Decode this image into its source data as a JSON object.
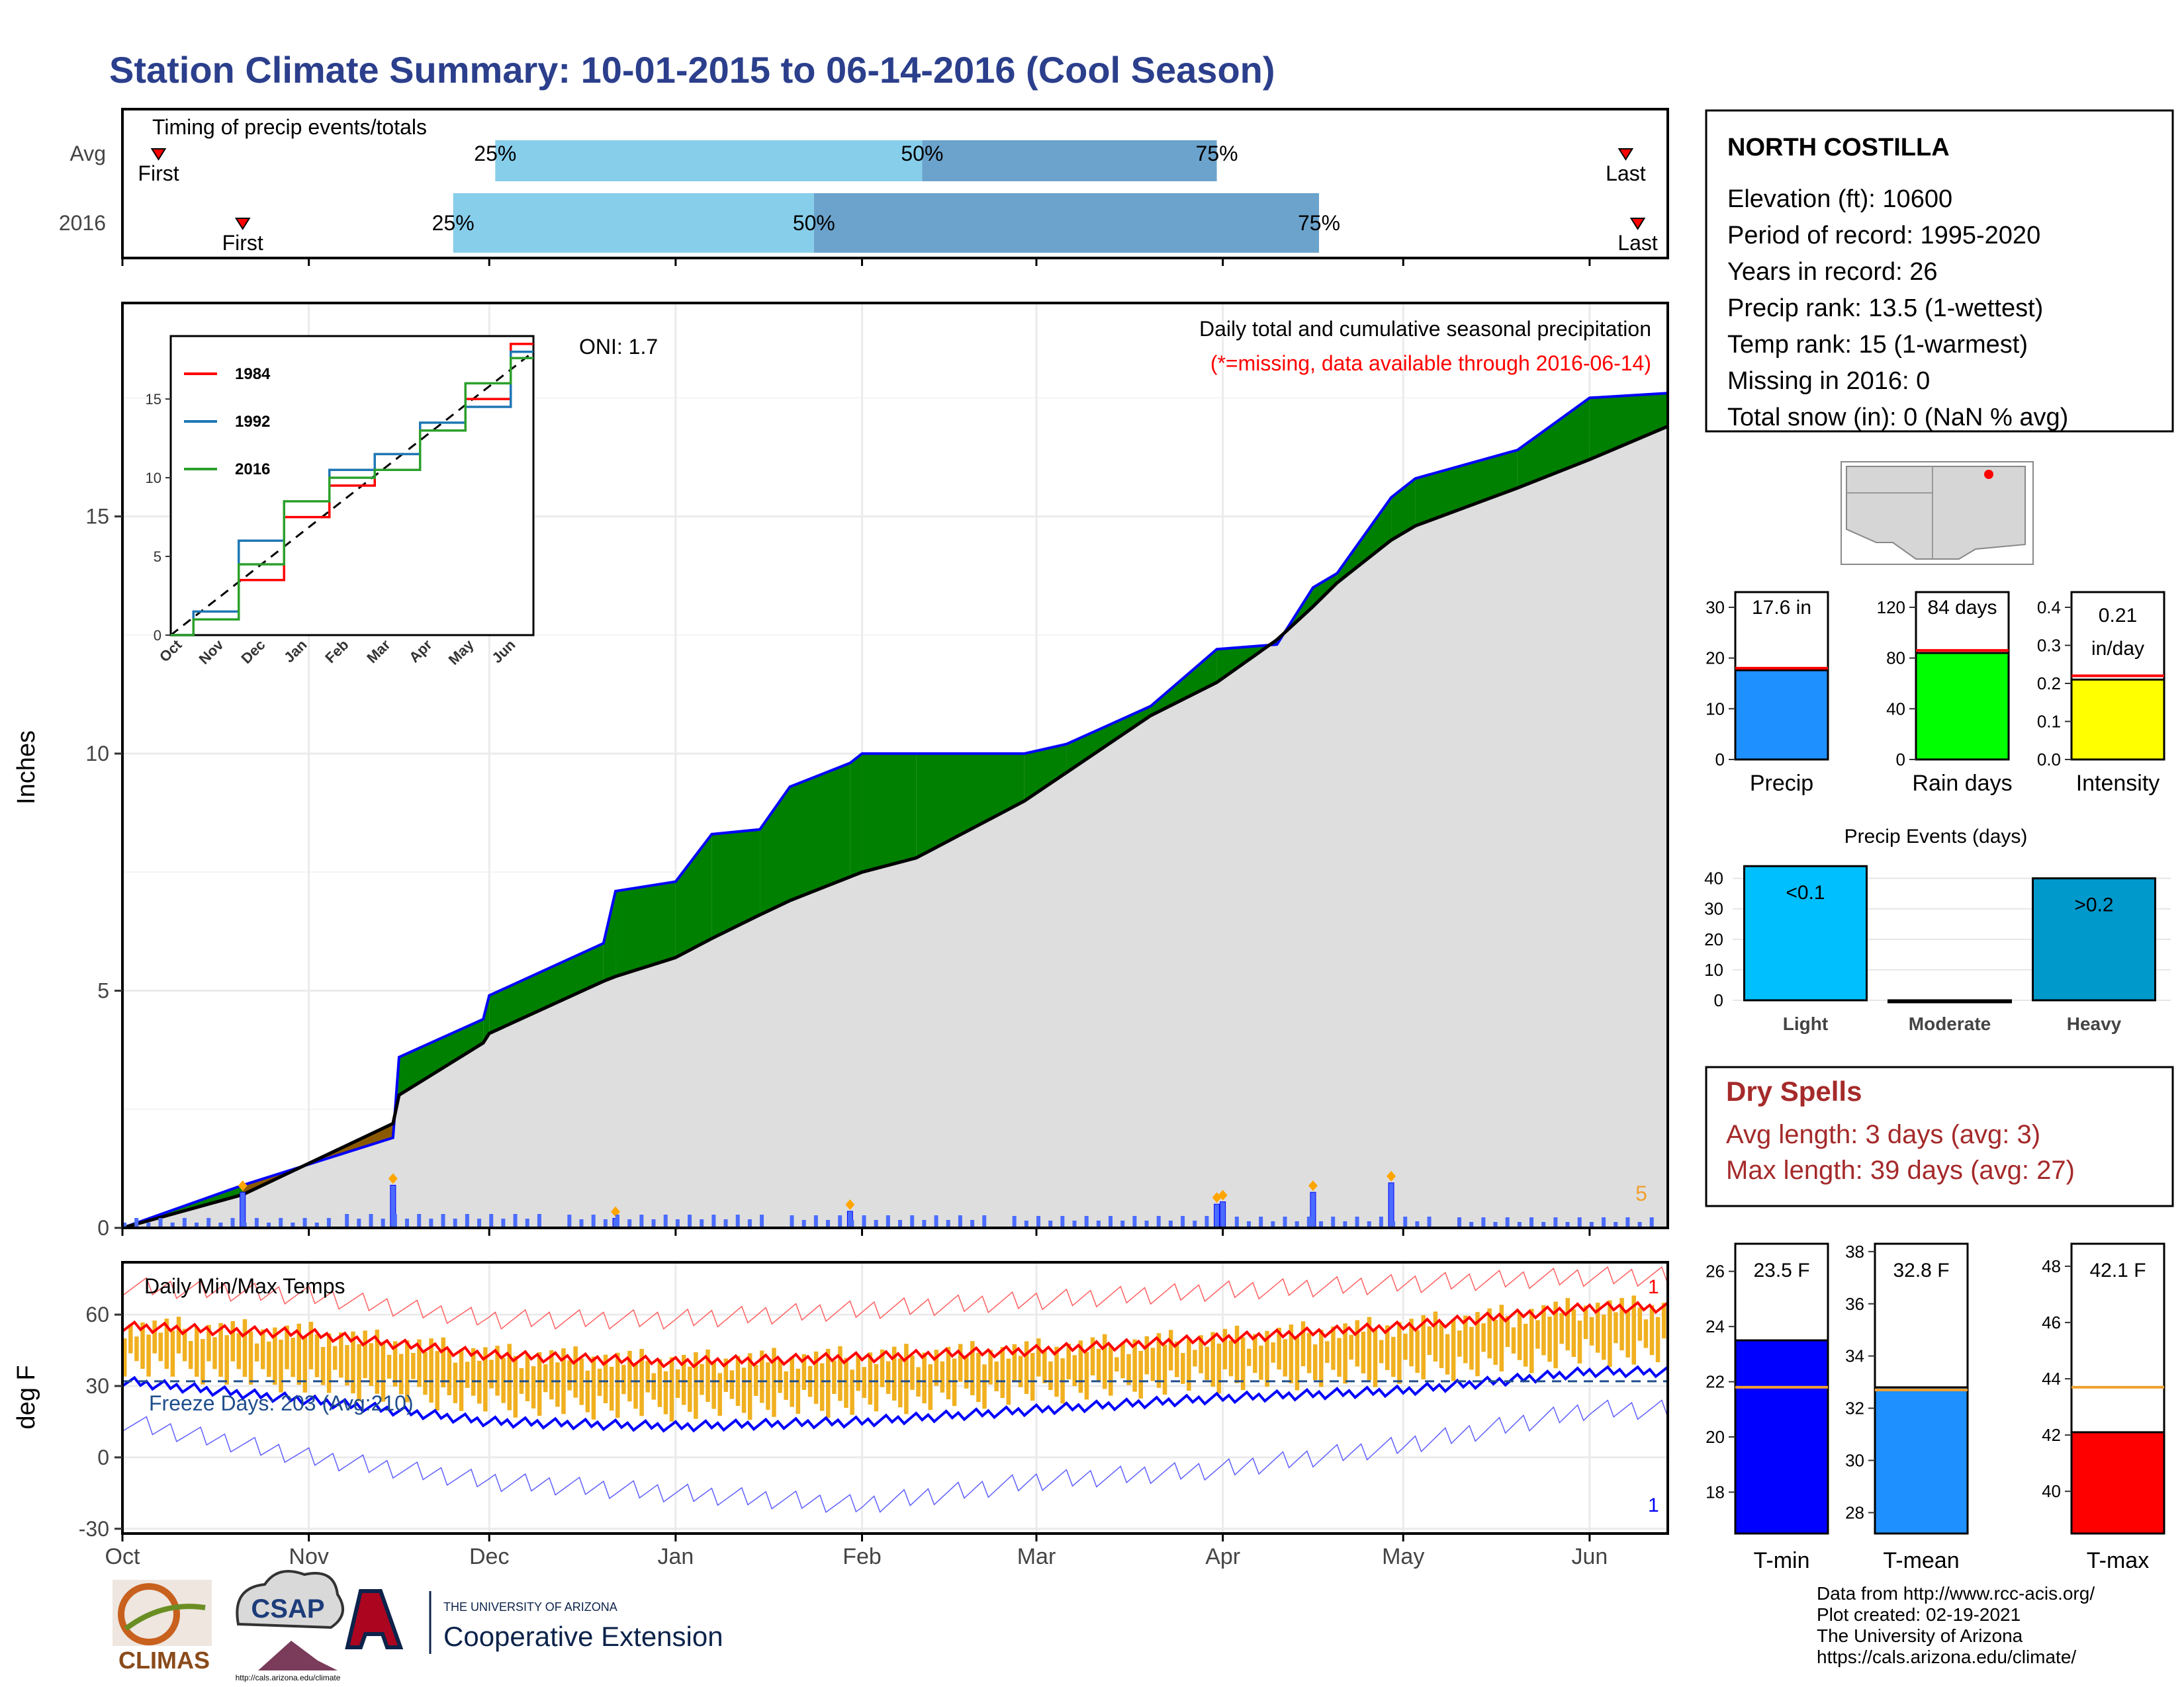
{
  "title": "Station Climate Summary: 10-01-2015 to 06-14-2016 (Cool Season)",
  "colors": {
    "title": "#2b3f8c",
    "light_blue": "#87ceeb",
    "mid_blue": "#6ba3cc",
    "green": "#008000",
    "brown": "#8b5a00",
    "grey_fill": "#dedede",
    "outline_blue": "#0000ff",
    "red": "#ff0000",
    "gold": "#f0b020",
    "dry_spell": "#a52a2a",
    "sky": "#00bfff",
    "heavy": "#0099cc",
    "rain_green": "#00ff00",
    "yellow": "#ffff00",
    "precip_blue": "#1e90ff",
    "tmin_blue": "#0000ff",
    "orange": "#f0a030"
  },
  "timing": {
    "label": "Timing of precip events/totals",
    "rows": [
      {
        "name": "Avg",
        "p25": "25%",
        "p50": "50%",
        "p75": "75%",
        "first": "First",
        "last": "Last",
        "first_date": "2015-10-07",
        "q25_date": "2015-12-02",
        "q50_date": "2016-02-11",
        "q75_date": "2016-03-31",
        "last_date": "2016-06-07"
      },
      {
        "name": "2016",
        "p25": "25%",
        "p50": "50%",
        "p75": "75%",
        "first": "First",
        "last": "Last",
        "first_date": "2015-10-21",
        "q25_date": "2015-11-25",
        "q50_date": "2016-01-24",
        "q75_date": "2016-04-17",
        "last_date": "2016-06-09"
      }
    ]
  },
  "main": {
    "ylabel": "Inches",
    "caption": "Daily total and cumulative seasonal precipitation",
    "missing_note": "(*=missing, data available through 2016-06-14)",
    "oni": "ONI: 1.7",
    "top_count": "5",
    "yticks": [
      "0",
      "5",
      "10",
      "15"
    ]
  },
  "inset": {
    "series": [
      {
        "name": "1984",
        "color": "#ff0000"
      },
      {
        "name": "1992",
        "color": "#1f77b4"
      },
      {
        "name": "2016",
        "color": "#2ca02c"
      }
    ],
    "yticks": [
      "0",
      "5",
      "10",
      "15"
    ],
    "xticks": [
      "Oct",
      "Nov",
      "Dec",
      "Jan",
      "Feb",
      "Mar",
      "Apr",
      "May",
      "Jun"
    ]
  },
  "temps": {
    "label": "Daily Min/Max Temps",
    "freeze": "Freeze Days: 203 (Avg:210)",
    "ylabel": "deg F",
    "yticks": [
      "60",
      "30",
      "0",
      "-30"
    ],
    "count_top": "1",
    "count_bottom": "1"
  },
  "months": [
    "Oct",
    "Nov",
    "Dec",
    "Jan",
    "Feb",
    "Mar",
    "Apr",
    "May",
    "Jun"
  ],
  "station": {
    "name": "NORTH COSTILLA",
    "lines": [
      "Elevation (ft): 10600",
      "Period of record: 1995-2020",
      "Years in record: 26",
      "Precip rank: 13.5 (1-wettest)",
      "Temp rank: 15 (1-warmest)",
      "Missing in 2016: 0",
      "Total snow (in): 0 (NaN % avg)"
    ]
  },
  "mini_precip": {
    "label": "Precip",
    "value_text": "17.6 in",
    "value": 17.6,
    "avg": 18.0,
    "yticks": [
      "0",
      "10",
      "20",
      "30"
    ]
  },
  "mini_raindays": {
    "label": "Rain days",
    "value_text": "84 days",
    "value": 84,
    "avg": 86,
    "yticks": [
      "0",
      "40",
      "80",
      "120"
    ]
  },
  "mini_intensity": {
    "label": "Intensity",
    "value_text": "0.21",
    "value_unit": "in/day",
    "value": 0.21,
    "avg": 0.22,
    "yticks": [
      "0.0",
      "0.1",
      "0.2",
      "0.3",
      "0.4"
    ]
  },
  "events": {
    "title": "Precip Events (days)",
    "categories": [
      "Light",
      "Moderate",
      "Heavy"
    ],
    "values": [
      44,
      0,
      40
    ],
    "bar_labels": [
      "<0.1",
      "",
      ">0.2"
    ],
    "yticks": [
      "0",
      "10",
      "20",
      "30",
      "40"
    ]
  },
  "dry_spells": {
    "title": "Dry Spells",
    "avg": "Avg length: 3 days (avg: 3)",
    "max": "Max length: 39 days (avg: 27)"
  },
  "temp_bars": [
    {
      "label": "T-min",
      "value_text": "23.5 F",
      "value": 23.5,
      "avg": 21.8,
      "yticks": [
        "18",
        "20",
        "22",
        "24",
        "26"
      ]
    },
    {
      "label": "T-mean",
      "value_text": "32.8 F",
      "value": 32.8,
      "avg": 32.7,
      "yticks": [
        "28",
        "30",
        "32",
        "34",
        "36",
        "38"
      ]
    },
    {
      "label": "T-max",
      "value_text": "42.1 F",
      "value": 42.1,
      "avg": 43.7,
      "yticks": [
        "40",
        "42",
        "44",
        "46",
        "48"
      ]
    }
  ],
  "footer": [
    "Data from http://www.rcc-acis.org/",
    "Plot created: 02-19-2021",
    "The University of Arizona",
    "https://cals.arizona.edu/climate/"
  ],
  "logos": {
    "climas": "CLIMAS",
    "csap": "CSAP",
    "csap_url": "http://cals.arizona.edu/climate",
    "ua_small": "THE UNIVERSITY OF ARIZONA",
    "ua_big": "Cooperative Extension"
  },
  "chart_data": [
    {
      "type": "line",
      "title": "Daily total and cumulative seasonal precipitation",
      "ylabel": "Inches",
      "ylim": [
        0,
        19.5
      ],
      "x": [
        "2015-10-01",
        "2015-10-21",
        "2015-11-15",
        "2015-11-16",
        "2015-11-30",
        "2015-12-01",
        "2015-12-20",
        "2015-12-22",
        "2016-01-01",
        "2016-01-07",
        "2016-01-15",
        "2016-01-20",
        "2016-01-30",
        "2016-02-01",
        "2016-02-10",
        "2016-02-28",
        "2016-03-06",
        "2016-03-20",
        "2016-03-31",
        "2016-04-10",
        "2016-04-16",
        "2016-04-20",
        "2016-04-29",
        "2016-05-03",
        "2016-05-20",
        "2016-06-01",
        "2016-06-14"
      ],
      "series": [
        {
          "name": "2016 cumulative",
          "values": [
            0.0,
            0.9,
            1.9,
            3.6,
            4.4,
            4.9,
            6.0,
            7.1,
            7.3,
            8.3,
            8.4,
            9.3,
            9.8,
            10.0,
            10.0,
            10.0,
            10.2,
            11.0,
            12.2,
            12.3,
            13.5,
            13.8,
            15.4,
            15.8,
            16.4,
            17.5,
            17.6
          ]
        },
        {
          "name": "Average cumulative",
          "values": [
            0.0,
            0.7,
            2.2,
            2.8,
            3.9,
            4.1,
            5.2,
            5.3,
            5.7,
            6.1,
            6.6,
            6.9,
            7.4,
            7.5,
            7.8,
            9.0,
            9.6,
            10.8,
            11.5,
            12.4,
            13.1,
            13.6,
            14.5,
            14.8,
            15.6,
            16.2,
            16.9
          ]
        }
      ],
      "daily_spikes": [
        {
          "x": "2015-10-21",
          "y": 0.75
        },
        {
          "x": "2015-11-15",
          "y": 0.9
        },
        {
          "x": "2015-12-22",
          "y": 0.2
        },
        {
          "x": "2016-01-30",
          "y": 0.35
        },
        {
          "x": "2016-04-01",
          "y": 0.55
        },
        {
          "x": "2016-04-16",
          "y": 0.75
        },
        {
          "x": "2016-04-29",
          "y": 0.95
        },
        {
          "x": "2016-03-31",
          "y": 0.5
        }
      ]
    },
    {
      "type": "line",
      "title": "Inset cumulative comparison",
      "x": [
        "Oct",
        "Nov",
        "Dec",
        "Jan",
        "Feb",
        "Mar",
        "Apr",
        "May",
        "Jun"
      ],
      "ylim": [
        0,
        19
      ],
      "series": [
        {
          "name": "1984",
          "values": [
            0.0,
            1.0,
            3.5,
            7.5,
            9.5,
            10.5,
            13.0,
            15.0,
            18.5
          ]
        },
        {
          "name": "1992",
          "values": [
            0.0,
            1.5,
            6.0,
            8.5,
            10.5,
            11.5,
            13.5,
            14.5,
            18.0
          ]
        },
        {
          "name": "2016",
          "values": [
            0.0,
            1.0,
            4.5,
            8.5,
            10.0,
            10.5,
            13.0,
            16.0,
            17.6
          ]
        }
      ]
    },
    {
      "type": "bar",
      "title": "Daily Min/Max Temps",
      "ylabel": "deg F",
      "ylim": [
        -30,
        80
      ],
      "x": [
        "Oct",
        "Nov",
        "Dec",
        "Jan",
        "Feb",
        "Mar",
        "Apr",
        "May",
        "Jun"
      ],
      "series": [
        {
          "name": "avg max",
          "values": [
            55,
            52,
            43,
            40,
            42,
            45,
            50,
            55,
            63
          ]
        },
        {
          "name": "avg min",
          "values": [
            32,
            24,
            15,
            13,
            15,
            20,
            25,
            28,
            36
          ]
        },
        {
          "name": "record max",
          "values": [
            72,
            68,
            58,
            58,
            62,
            66,
            70,
            73,
            76
          ]
        },
        {
          "name": "record min",
          "values": [
            15,
            0,
            -10,
            -15,
            -20,
            -10,
            -5,
            5,
            20
          ]
        }
      ],
      "freeze_line": 32
    }
  ]
}
